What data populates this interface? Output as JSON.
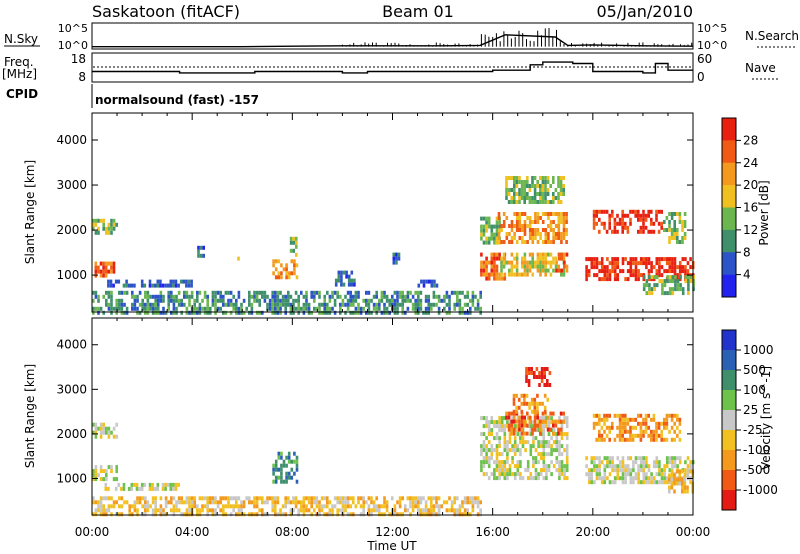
{
  "header": {
    "station": "Saskatoon (fitACF)",
    "beam": "Beam 01",
    "date": "05/Jan/2010"
  },
  "strip_panels": {
    "nsky": {
      "label": "N.Sky",
      "ticks": [
        "10^5",
        "10^0"
      ],
      "right_label": "N.Search",
      "right_ticks": [
        "10^5",
        "10^0"
      ]
    },
    "freq": {
      "label_top": "Freq.",
      "label_bottom": "[MHz]",
      "ticks": [
        "18",
        "8"
      ],
      "right_label": "Nave",
      "right_ticks": [
        "60",
        "0"
      ]
    },
    "cpid": {
      "label": "CPID",
      "text": "normalsound (fast) -157"
    }
  },
  "time_axis": {
    "xlabel": "Time UT",
    "ticks": [
      "00:00",
      "04:00",
      "08:00",
      "12:00",
      "16:00",
      "20:00",
      "00:00"
    ],
    "range_hours": [
      0,
      24
    ]
  },
  "colors": {
    "power": [
      "#2222ee",
      "#2d53c8",
      "#3f8f6b",
      "#6cb64f",
      "#f0c020",
      "#f39a1e",
      "#f05a14",
      "#e82010"
    ],
    "velocity": [
      "#2233cc",
      "#2a61b5",
      "#3f8f6b",
      "#6cc24a",
      "#c8c8c8",
      "#f2c020",
      "#f39a1e",
      "#f05a14",
      "#e41a14"
    ]
  },
  "chart_data": [
    {
      "type": "heatmap",
      "name": "power",
      "ylabel": "Slant Range [km]",
      "ylim": [
        180,
        4600
      ],
      "yticks": [
        1000,
        2000,
        3000,
        4000
      ],
      "colorbar": {
        "label": "Power [dB]",
        "ticks": [
          "4",
          "8",
          "12",
          "16",
          "20",
          "24",
          "28"
        ],
        "range": [
          0,
          32
        ]
      },
      "regions": [
        {
          "t": [
            0.0,
            1.0
          ],
          "r": [
            1900,
            2250
          ],
          "level": 3
        },
        {
          "t": [
            0.1,
            0.9
          ],
          "r": [
            1000,
            1300
          ],
          "level": 6
        },
        {
          "t": [
            0.5,
            4.0
          ],
          "r": [
            780,
            900
          ],
          "level": 1
        },
        {
          "t": [
            0.0,
            15.5
          ],
          "r": [
            200,
            650
          ],
          "level": 2
        },
        {
          "t": [
            4.2,
            4.5
          ],
          "r": [
            1450,
            1650
          ],
          "level": 1
        },
        {
          "t": [
            5.8,
            6.0
          ],
          "r": [
            1380,
            1500
          ],
          "level": 4
        },
        {
          "t": [
            7.2,
            8.2
          ],
          "r": [
            950,
            1350
          ],
          "level": 5
        },
        {
          "t": [
            7.9,
            8.2
          ],
          "r": [
            1450,
            1850
          ],
          "level": 3
        },
        {
          "t": [
            9.7,
            10.5
          ],
          "r": [
            750,
            1100
          ],
          "level": 1
        },
        {
          "t": [
            12.0,
            12.3
          ],
          "r": [
            1300,
            1500
          ],
          "level": 1
        },
        {
          "t": [
            13.0,
            14.0
          ],
          "r": [
            800,
            900
          ],
          "level": 1
        },
        {
          "t": [
            15.5,
            16.5
          ],
          "r": [
            900,
            1500
          ],
          "level": 6
        },
        {
          "t": [
            15.5,
            16.3
          ],
          "r": [
            1700,
            2300
          ],
          "level": 3
        },
        {
          "t": [
            16.2,
            19.0
          ],
          "r": [
            1750,
            2400
          ],
          "level": 5
        },
        {
          "t": [
            16.3,
            18.8
          ],
          "r": [
            1000,
            1500
          ],
          "level": 4
        },
        {
          "t": [
            16.5,
            18.8
          ],
          "r": [
            2600,
            3200
          ],
          "level": 3
        },
        {
          "t": [
            18.5,
            19.0
          ],
          "r": [
            1100,
            1500
          ],
          "level": 6
        },
        {
          "t": [
            20.0,
            22.8
          ],
          "r": [
            1950,
            2450
          ],
          "level": 7
        },
        {
          "t": [
            19.7,
            24.0
          ],
          "r": [
            900,
            1400
          ],
          "level": 7
        },
        {
          "t": [
            22.0,
            24.0
          ],
          "r": [
            600,
            1000
          ],
          "level": 3
        },
        {
          "t": [
            22.8,
            23.7
          ],
          "r": [
            1700,
            2400
          ],
          "level": 3
        }
      ]
    },
    {
      "type": "heatmap",
      "name": "velocity",
      "ylabel": "Slant Range [km]",
      "ylim": [
        180,
        4600
      ],
      "yticks": [
        1000,
        2000,
        3000,
        4000
      ],
      "colorbar": {
        "label": "Velocity [m s^-1]",
        "ticks": [
          "1000",
          "500",
          "100",
          "25",
          "-25",
          "-100",
          "-500",
          "-1000"
        ],
        "range": [
          -1200,
          1200
        ]
      },
      "regions": [
        {
          "t": [
            0.0,
            1.0
          ],
          "r": [
            1900,
            2250
          ],
          "level": 4
        },
        {
          "t": [
            0.0,
            1.0
          ],
          "r": [
            1000,
            1300
          ],
          "level": 4
        },
        {
          "t": [
            0.5,
            3.5
          ],
          "r": [
            780,
            900
          ],
          "level": 4
        },
        {
          "t": [
            0.0,
            15.5
          ],
          "r": [
            200,
            600
          ],
          "level": 5
        },
        {
          "t": [
            7.2,
            8.2
          ],
          "r": [
            950,
            1600
          ],
          "level": 2
        },
        {
          "t": [
            15.5,
            19.0
          ],
          "r": [
            1000,
            2400
          ],
          "level": 4
        },
        {
          "t": [
            16.5,
            18.8
          ],
          "r": [
            2000,
            2500
          ],
          "level": 7
        },
        {
          "t": [
            17.3,
            18.3
          ],
          "r": [
            3100,
            3500
          ],
          "level": 8
        },
        {
          "t": [
            16.8,
            18.2
          ],
          "r": [
            2500,
            2900
          ],
          "level": 6
        },
        {
          "t": [
            20.0,
            23.5
          ],
          "r": [
            1900,
            2450
          ],
          "level": 6
        },
        {
          "t": [
            19.7,
            24.0
          ],
          "r": [
            900,
            1500
          ],
          "level": 4
        },
        {
          "t": [
            23.0,
            24.0
          ],
          "r": [
            700,
            1200
          ],
          "level": 5
        }
      ]
    },
    {
      "type": "line",
      "name": "nsky",
      "x": [
        0,
        2,
        4,
        6,
        8,
        10,
        12,
        14,
        15.5,
        16.5,
        18.5,
        19,
        20,
        22,
        24
      ],
      "y": [
        0.3,
        0.3,
        0.3,
        0.3,
        0.4,
        0.5,
        0.5,
        0.5,
        0.6,
        3.0,
        2.5,
        0.6,
        0.7,
        0.5,
        0.4
      ]
    },
    {
      "type": "line",
      "name": "frequency",
      "x": [
        0,
        3,
        3.5,
        6,
        6.5,
        10,
        11,
        15,
        16,
        17.5,
        18,
        19.2,
        20,
        22,
        22.5,
        23,
        24
      ],
      "y": [
        11.5,
        11.5,
        11.0,
        11.0,
        11.5,
        11.0,
        11.5,
        11.5,
        12.0,
        14.0,
        15.0,
        14.5,
        11.5,
        11.0,
        14.5,
        12.0,
        12.0
      ]
    }
  ]
}
